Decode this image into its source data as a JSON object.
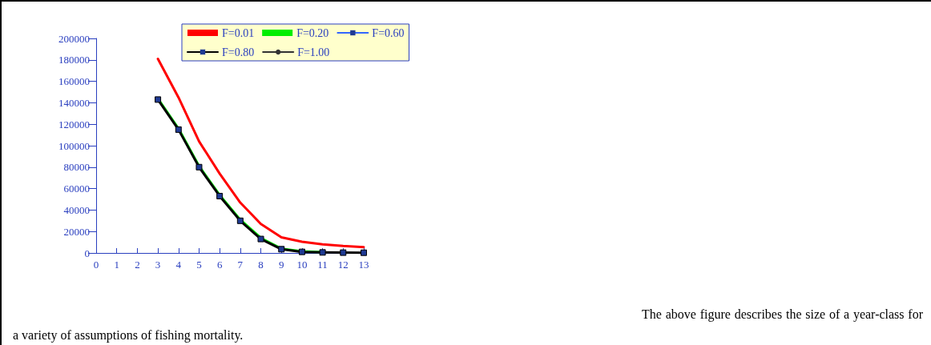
{
  "chart_data": {
    "type": "line",
    "x": [
      3,
      4,
      5,
      6,
      7,
      8,
      9,
      10,
      11,
      12,
      13
    ],
    "xlim": [
      0,
      13
    ],
    "xticks": [
      0,
      1,
      2,
      3,
      4,
      5,
      6,
      7,
      8,
      9,
      10,
      11,
      12,
      13
    ],
    "ylim": [
      0,
      200000
    ],
    "yticks": [
      0,
      20000,
      40000,
      60000,
      80000,
      100000,
      120000,
      140000,
      160000,
      180000,
      200000
    ],
    "grid": false,
    "legend": "top",
    "series": [
      {
        "name": "F=0.01",
        "color": "#ff0000",
        "marker": "none",
        "values": [
          181000,
          145000,
          104000,
          74000,
          47000,
          27000,
          14500,
          10500,
          8000,
          6500,
          5500
        ]
      },
      {
        "name": "F=0.20",
        "color": "#00ee00",
        "marker": "none",
        "values": [
          144000,
          116000,
          81000,
          54000,
          31000,
          14000,
          4000,
          1500,
          800,
          null,
          null
        ]
      },
      {
        "name": "F=0.60",
        "color": "#3366ff",
        "marker": "square",
        "values": [
          null,
          null,
          null,
          null,
          null,
          null,
          null,
          null,
          null,
          null,
          null
        ]
      },
      {
        "name": "F=0.80",
        "color": "#000000",
        "marker": "square",
        "values": [
          143000,
          115000,
          80000,
          53000,
          30000,
          13000,
          3500,
          1000,
          500,
          300,
          200
        ]
      },
      {
        "name": "F=1.00",
        "color": "#333333",
        "marker": "circle",
        "values": [
          null,
          null,
          null,
          null,
          null,
          null,
          null,
          null,
          null,
          null,
          null
        ]
      }
    ],
    "annotations": [
      "The above figure describes the size of a year-class for a variety of assumptions of fishing mortality."
    ]
  }
}
